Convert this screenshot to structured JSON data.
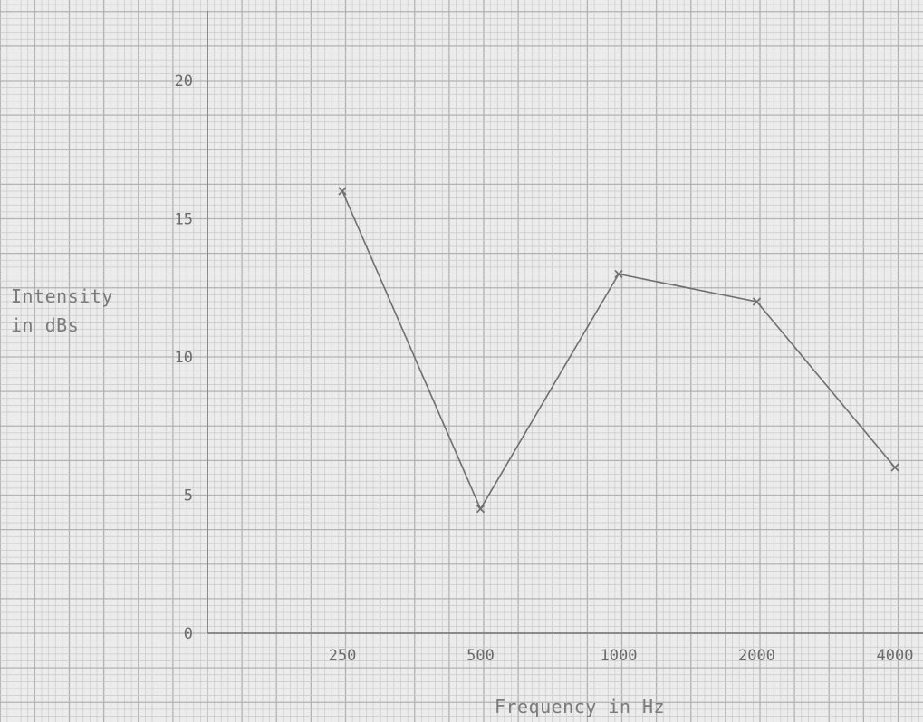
{
  "chart_data": {
    "type": "line",
    "title": "",
    "xlabel": "Frequency in Hz",
    "ylabel_lines": [
      "Intensity",
      "in dBs"
    ],
    "categories": [
      "250",
      "500",
      "1000",
      "2000",
      "4000"
    ],
    "series": [
      {
        "values": [
          16,
          4.5,
          13,
          12,
          6
        ],
        "marker": "x"
      }
    ],
    "yticks": [
      "0",
      "5",
      "10",
      "15",
      "20"
    ],
    "ylim": [
      0,
      22.5
    ],
    "grid": true,
    "background": "graph-paper",
    "colors": {
      "paper": "#ececec",
      "grid_minor": "#c9c9c9",
      "grid_major": "#b2b2b2",
      "axis": "#8a8a8a",
      "line": "#6e6e6e",
      "text": "#6a6a6a"
    }
  }
}
